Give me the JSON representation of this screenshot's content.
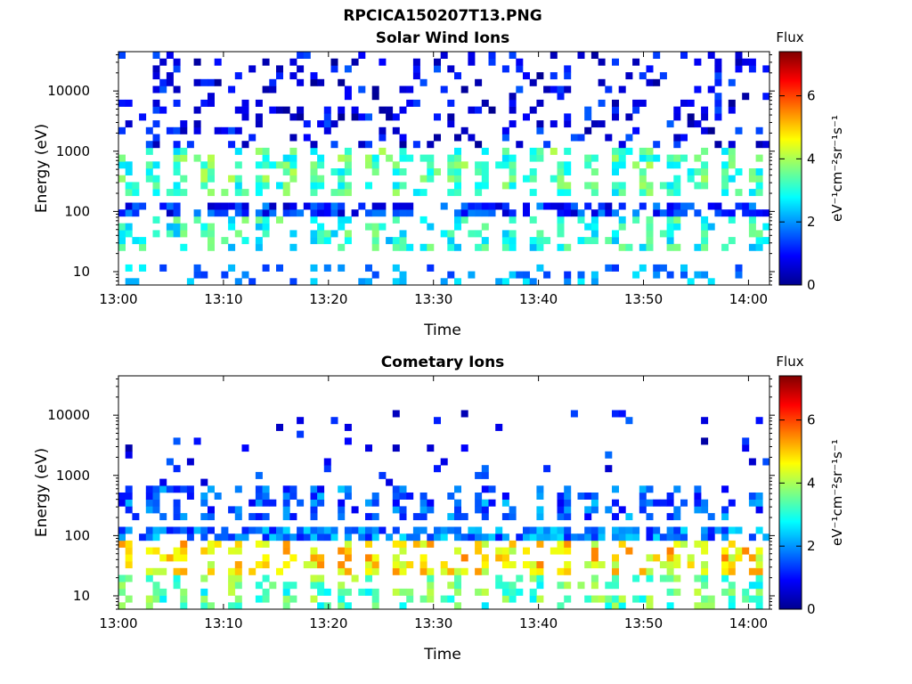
{
  "figure": {
    "title": "RPCICA150207T13.PNG"
  },
  "chart_data": [
    {
      "type": "heatmap",
      "title": "Solar Wind Ions",
      "xlabel": "Time",
      "ylabel": "Energy (eV)",
      "yscale": "log",
      "x_ticks": [
        "13:00",
        "13:10",
        "13:20",
        "13:30",
        "13:40",
        "13:50",
        "14:00"
      ],
      "y_ticks": [
        "10",
        "100",
        "1000",
        "10000"
      ],
      "colorbar": {
        "label": "Flux",
        "unit": "eV⁻¹cm⁻²sr⁻¹s⁻¹",
        "ticks": [
          "0",
          "2",
          "4",
          "6"
        ],
        "range": [
          0,
          7.4
        ]
      },
      "colormap": "jet",
      "xlim": [
        "13:00",
        "14:02"
      ],
      "ylim_eV": [
        6,
        45000
      ],
      "features": [
        {
          "band_eV": [
            6,
            12
          ],
          "flux": 2,
          "occurrence": "sparse"
        },
        {
          "band_eV": [
            20,
            80
          ],
          "flux": 3,
          "occurrence": "periodic"
        },
        {
          "band_eV": [
            90,
            150
          ],
          "flux": 1.2,
          "occurrence": "dense"
        },
        {
          "band_eV": [
            200,
            1200
          ],
          "flux": 3.3,
          "occurrence": "periodic"
        },
        {
          "band_eV": [
            1200,
            45000
          ],
          "flux": 0.8,
          "occurrence": "sparse"
        }
      ]
    },
    {
      "type": "heatmap",
      "title": "Cometary Ions",
      "xlabel": "Time",
      "ylabel": "Energy (eV)",
      "yscale": "log",
      "x_ticks": [
        "13:00",
        "13:10",
        "13:20",
        "13:30",
        "13:40",
        "13:50",
        "14:00"
      ],
      "y_ticks": [
        "10",
        "100",
        "1000",
        "10000"
      ],
      "colorbar": {
        "label": "Flux",
        "unit": "eV⁻¹cm⁻²sr⁻¹s⁻¹",
        "ticks": [
          "0",
          "2",
          "4",
          "6"
        ],
        "range": [
          0,
          7.4
        ]
      },
      "colormap": "jet",
      "xlim": [
        "13:00",
        "14:02"
      ],
      "ylim_eV": [
        6,
        45000
      ],
      "features": [
        {
          "band_eV": [
            6,
            20
          ],
          "flux": 3.4,
          "occurrence": "periodic"
        },
        {
          "band_eV": [
            20,
            90
          ],
          "flux": 4.8,
          "occurrence": "periodic"
        },
        {
          "band_eV": [
            90,
            150
          ],
          "flux": 1.8,
          "occurrence": "dense"
        },
        {
          "band_eV": [
            200,
            700
          ],
          "flux": 1.6,
          "occurrence": "periodic"
        },
        {
          "band_eV": [
            700,
            12000
          ],
          "flux": 0.9,
          "occurrence": "rare"
        }
      ]
    }
  ]
}
